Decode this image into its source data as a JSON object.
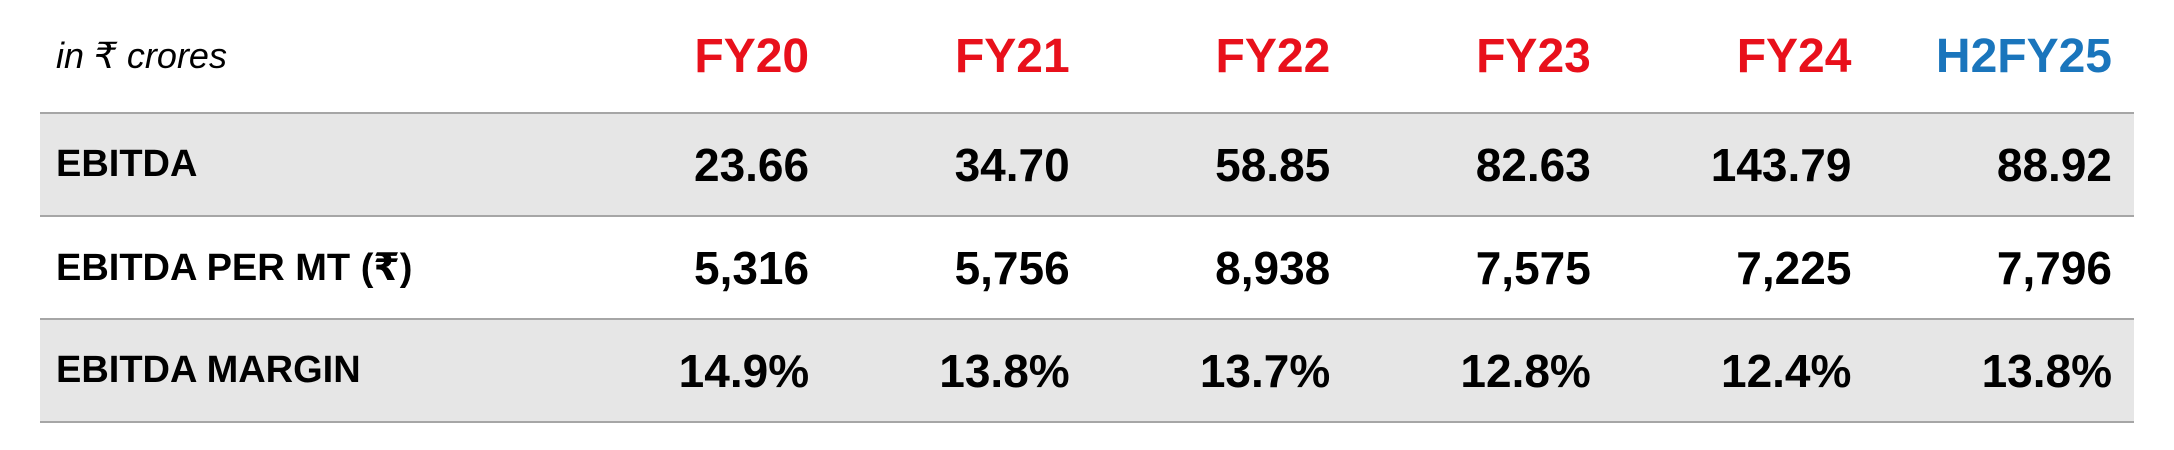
{
  "table": {
    "unit_label": "in ₹ crores",
    "columns": [
      {
        "label": "FY20",
        "color": "#e8101b"
      },
      {
        "label": "FY21",
        "color": "#e8101b"
      },
      {
        "label": "FY22",
        "color": "#e8101b"
      },
      {
        "label": "FY23",
        "color": "#e8101b"
      },
      {
        "label": "FY24",
        "color": "#e8101b"
      },
      {
        "label": "H2FY25",
        "color": "#1a75bc"
      }
    ],
    "rows": [
      {
        "label": "EBITDA",
        "values": [
          "23.66",
          "34.70",
          "58.85",
          "82.63",
          "143.79",
          "88.92"
        ]
      },
      {
        "label": "EBITDA PER MT (₹)",
        "values": [
          "5,316",
          "5,756",
          "8,938",
          "7,575",
          "7,225",
          "7,796"
        ]
      },
      {
        "label": "EBITDA MARGIN",
        "values": [
          "14.9%",
          "13.8%",
          "13.7%",
          "12.8%",
          "12.4%",
          "13.8%"
        ]
      }
    ]
  }
}
